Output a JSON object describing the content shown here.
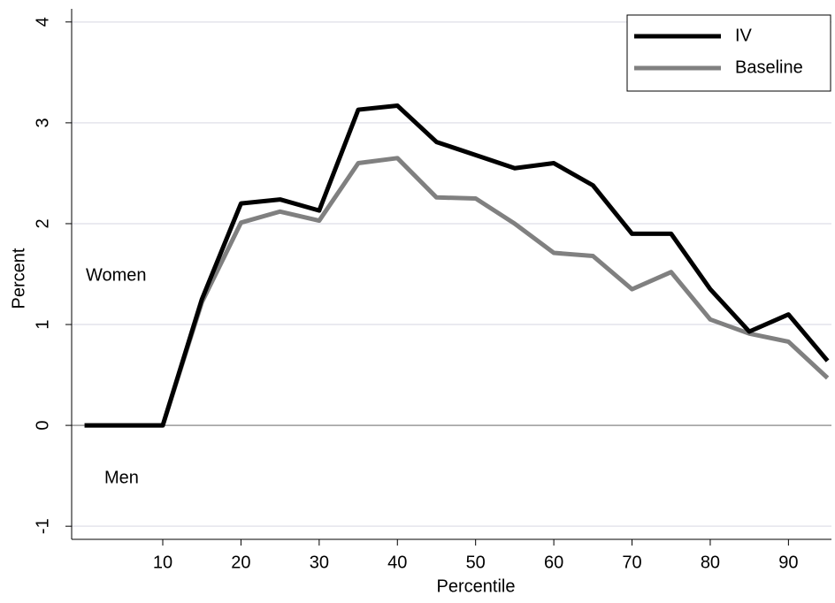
{
  "chart_data": {
    "type": "line",
    "x_label": "Percentile",
    "y_label": "Percent",
    "x": [
      0,
      5,
      10,
      15,
      20,
      25,
      30,
      35,
      40,
      45,
      50,
      55,
      60,
      65,
      70,
      75,
      80,
      85,
      90,
      95
    ],
    "series": [
      {
        "name": "IV",
        "color": "#000000",
        "values": [
          0,
          0,
          0,
          1.25,
          2.2,
          2.24,
          2.13,
          3.13,
          3.17,
          2.81,
          2.68,
          2.55,
          2.6,
          2.38,
          1.9,
          1.9,
          1.35,
          0.93,
          1.1,
          0.64
        ]
      },
      {
        "name": "Baseline",
        "color": "#808080",
        "values": [
          0,
          0,
          0,
          1.22,
          2.01,
          2.12,
          2.03,
          2.6,
          2.65,
          2.26,
          2.25,
          2.0,
          1.71,
          1.68,
          1.35,
          1.52,
          1.05,
          0.91,
          0.83,
          0.47
        ]
      }
    ],
    "annotations": [
      "Women",
      "Men"
    ],
    "xlim": [
      -1.65,
      95.5
    ],
    "ylim": [
      -1.13,
      4.13
    ],
    "xticks": [
      10,
      20,
      30,
      40,
      50,
      60,
      70,
      80,
      90
    ],
    "yticks": [
      -1,
      0,
      1,
      2,
      3,
      4
    ],
    "grid": true,
    "legend": "top-right"
  }
}
